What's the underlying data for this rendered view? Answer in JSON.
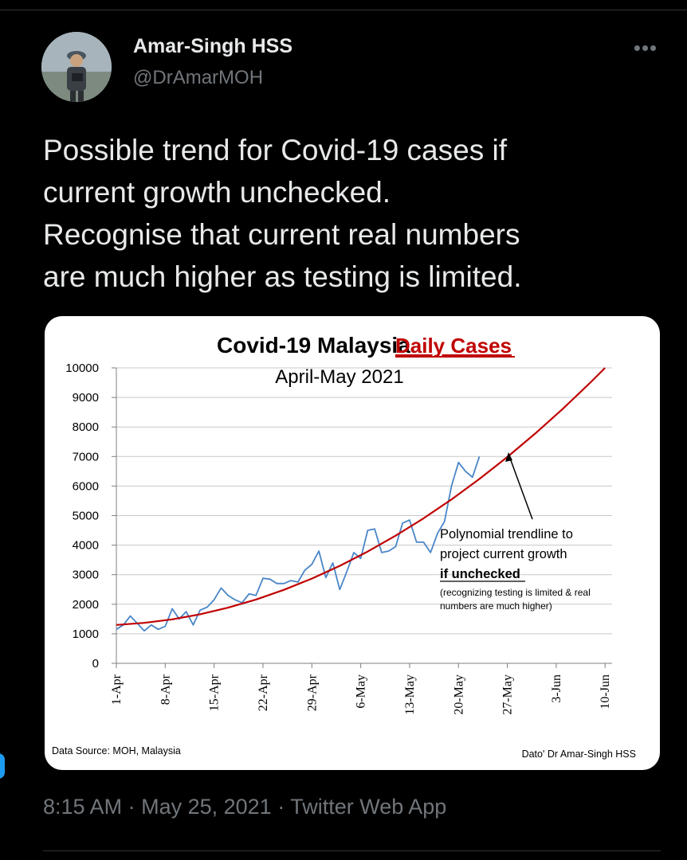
{
  "tweet": {
    "display_name": "Amar-Singh HSS",
    "handle": "@DrAmarMOH",
    "more_icon": "more-horizontal-icon",
    "text": "Possible trend for Covid-19 cases if\ncurrent growth unchecked.\nRecognise that current real numbers\nare much higher as testing is limited.",
    "time": "8:15 AM",
    "date": "May 25, 2021",
    "separator": "·",
    "source": "Twitter Web App"
  },
  "colors": {
    "background": "#000000",
    "text": "#e7e9ea",
    "muted": "#71767b",
    "accent": "#1d9bf0",
    "chart_title_red": "#c00000",
    "series_blue": "#4a86c8",
    "trend_red": "#c00000"
  },
  "chart_data": {
    "type": "line",
    "title": "Covid-19 Malaysia",
    "title_highlight": "Daily Cases",
    "subtitle": "April-May 2021",
    "x_tick_labels": [
      "1-Apr",
      "8-Apr",
      "15-Apr",
      "22-Apr",
      "29-Apr",
      "6-May",
      "13-May",
      "20-May",
      "27-May",
      "3-Jun",
      "10-Jun"
    ],
    "y_tick_labels": [
      "0",
      "1000",
      "2000",
      "3000",
      "4000",
      "5000",
      "6000",
      "7000",
      "8000",
      "9000",
      "10000"
    ],
    "ylim": [
      0,
      10000
    ],
    "x_day_range": [
      1,
      72
    ],
    "grid": true,
    "series": [
      {
        "kind": "daily",
        "values": [
          1150,
          1300,
          1600,
          1350,
          1100,
          1300,
          1150,
          1250,
          1850,
          1500,
          1750,
          1300,
          1800,
          1900,
          2150,
          2550,
          2300,
          2150,
          2050,
          2350,
          2300,
          2880,
          2850,
          2700,
          2700,
          2800,
          2750,
          3150,
          3350,
          3800,
          2900,
          3400,
          2500,
          3100,
          3750,
          3550,
          4500,
          4550,
          3750,
          3800,
          3950,
          4750,
          4850,
          4100,
          4100,
          3750,
          4400,
          4800,
          6000,
          6800,
          6500,
          6300,
          7000
        ]
      },
      {
        "kind": "trendline",
        "values": [
          1300,
          1368,
          1488,
          1660,
          1884,
          2160,
          2488,
          2868,
          3300,
          3784,
          4320,
          4908,
          5548,
          6240,
          6984,
          7780,
          8628,
          9528,
          10000
        ],
        "x_days": [
          1,
          5,
          9,
          13,
          17,
          21,
          25,
          29,
          33,
          37,
          41,
          45,
          49,
          53,
          57,
          61,
          65,
          69,
          71
        ]
      }
    ],
    "annotation": {
      "line1": "Polynomial trendline to",
      "line2": "project current growth",
      "line3": "if unchecked",
      "line4": "(recognizing testing is limited & real",
      "line5": "numbers are much higher)"
    },
    "source_left": "Data Source: MOH, Malaysia",
    "source_right": "Dato' Dr Amar-Singh HSS"
  }
}
